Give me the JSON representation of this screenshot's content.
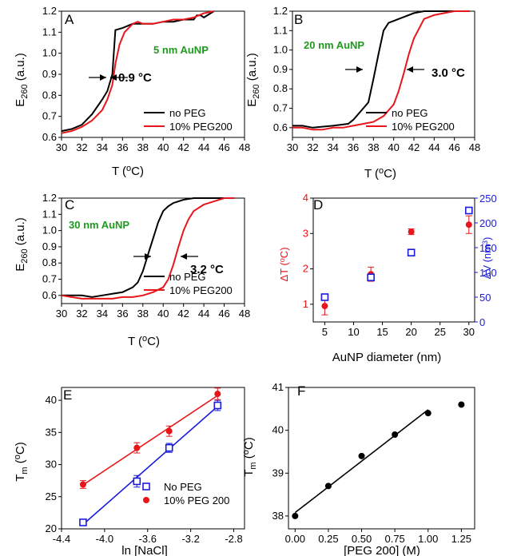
{
  "figure_colors": {
    "black": "#000000",
    "red": "#e8161b",
    "blue": "#1a1adc",
    "green": "#1e9a1e"
  },
  "chart_data": [
    {
      "panel": "A",
      "type": "line",
      "annotation": "5 nm AuNP",
      "delta_label": "0.9 °C",
      "xlabel": "T (°C)",
      "ylabel": "E260 (a.u.)",
      "xlim": [
        30,
        48
      ],
      "ylim": [
        0.6,
        1.2
      ],
      "xticks": [
        "30",
        "32",
        "34",
        "36",
        "38",
        "40",
        "42",
        "44",
        "46",
        "48"
      ],
      "yticks": [
        "0.6",
        "0.7",
        "0.8",
        "0.9",
        "1.0",
        "1.1",
        "1.2"
      ],
      "legend": "bottom-right",
      "series": [
        {
          "name": "no PEG",
          "color": "#000000",
          "x": [
            30,
            31,
            32,
            33,
            34,
            34.5,
            35,
            35.3,
            36,
            37,
            38,
            39,
            40,
            41,
            42,
            43,
            43.3,
            43.7,
            44,
            45
          ],
          "y": [
            0.63,
            0.64,
            0.66,
            0.71,
            0.78,
            0.82,
            0.9,
            1.11,
            1.12,
            1.14,
            1.14,
            1.14,
            1.15,
            1.15,
            1.16,
            1.16,
            1.18,
            1.18,
            1.17,
            1.2
          ]
        },
        {
          "name": "10% PEG200",
          "color": "#e8161b",
          "x": [
            30,
            31,
            32,
            33,
            34,
            34.5,
            35,
            35.3,
            35.7,
            36.2,
            37,
            37.5,
            38,
            39,
            40,
            41,
            42,
            43,
            44,
            45
          ],
          "y": [
            0.62,
            0.63,
            0.65,
            0.68,
            0.73,
            0.78,
            0.85,
            0.95,
            1.04,
            1.1,
            1.14,
            1.15,
            1.14,
            1.14,
            1.15,
            1.16,
            1.16,
            1.17,
            1.19,
            1.2
          ]
        }
      ]
    },
    {
      "panel": "B",
      "type": "line",
      "annotation": "20 nm AuNP",
      "delta_label": "3.0 °C",
      "xlabel": "T (°C)",
      "ylabel": "E260 (a.u.)",
      "xlim": [
        30,
        48
      ],
      "ylim": [
        0.55,
        1.2
      ],
      "xticks": [
        "30",
        "32",
        "34",
        "36",
        "38",
        "40",
        "42",
        "44",
        "46",
        "48"
      ],
      "yticks": [
        "0.6",
        "0.7",
        "0.8",
        "0.9",
        "1.0",
        "1.1",
        "1.2"
      ],
      "legend": "bottom-right",
      "series": [
        {
          "name": "no PEG",
          "color": "#000000",
          "x": [
            30,
            31,
            32,
            34,
            35.5,
            36,
            37,
            37.5,
            38,
            38.5,
            39,
            39.5,
            40,
            40.5,
            41,
            42,
            43,
            44,
            45,
            46,
            47.5
          ],
          "y": [
            0.61,
            0.61,
            0.6,
            0.61,
            0.62,
            0.64,
            0.7,
            0.73,
            0.85,
            0.98,
            1.1,
            1.14,
            1.15,
            1.16,
            1.17,
            1.19,
            1.2,
            1.2,
            1.2,
            1.2,
            1.2
          ]
        },
        {
          "name": "10% PEG200",
          "color": "#e8161b",
          "x": [
            30,
            31,
            32,
            33,
            34,
            35,
            36,
            37,
            38,
            39,
            39.5,
            40,
            40.5,
            41,
            41.5,
            42,
            43,
            44,
            45,
            46,
            47.5
          ],
          "y": [
            0.6,
            0.6,
            0.59,
            0.59,
            0.6,
            0.6,
            0.61,
            0.62,
            0.63,
            0.66,
            0.69,
            0.72,
            0.79,
            0.88,
            0.98,
            1.06,
            1.16,
            1.18,
            1.19,
            1.2,
            1.2
          ]
        }
      ]
    },
    {
      "panel": "C",
      "type": "line",
      "annotation": "30 nm AuNP",
      "delta_label": "3.2 °C",
      "xlabel": "T (°C)",
      "ylabel": "E260 (a.u.)",
      "xlim": [
        30,
        48
      ],
      "ylim": [
        0.55,
        1.2
      ],
      "xticks": [
        "30",
        "32",
        "34",
        "36",
        "38",
        "40",
        "42",
        "44",
        "46",
        "48"
      ],
      "yticks": [
        "0.6",
        "0.7",
        "0.8",
        "0.9",
        "1.0",
        "1.1",
        "1.2"
      ],
      "legend": "bottom-right",
      "series": [
        {
          "name": "no PEG",
          "color": "#000000",
          "x": [
            30,
            31,
            32,
            33,
            34,
            35,
            36,
            37,
            37.5,
            38,
            38.5,
            39,
            39.5,
            40,
            40.5,
            41,
            42,
            43,
            44,
            45,
            47
          ],
          "y": [
            0.6,
            0.6,
            0.6,
            0.59,
            0.6,
            0.61,
            0.62,
            0.65,
            0.68,
            0.75,
            0.85,
            0.95,
            1.05,
            1.12,
            1.15,
            1.17,
            1.19,
            1.2,
            1.2,
            1.2,
            1.2
          ]
        },
        {
          "name": "10% PEG200",
          "color": "#e8161b",
          "x": [
            30,
            31,
            32,
            33,
            34,
            35,
            36,
            37,
            38,
            39,
            40,
            40.5,
            41,
            41.5,
            42,
            42.5,
            43,
            44,
            45,
            46,
            47
          ],
          "y": [
            0.6,
            0.59,
            0.58,
            0.58,
            0.58,
            0.58,
            0.59,
            0.59,
            0.6,
            0.62,
            0.65,
            0.7,
            0.79,
            0.9,
            1.0,
            1.07,
            1.12,
            1.16,
            1.18,
            1.2,
            1.2
          ]
        }
      ]
    },
    {
      "panel": "D",
      "type": "scatter",
      "xlabel": "AuNP diameter (nm)",
      "ylabel": "ΔT (°C)",
      "y2label": "ΔV (nm³)",
      "xlim": [
        3,
        31
      ],
      "ylim": [
        0.5,
        4
      ],
      "y2lim": [
        0,
        250
      ],
      "xticks": [
        "5",
        "10",
        "15",
        "20",
        "25",
        "30"
      ],
      "yticks": [
        "1",
        "2",
        "3",
        "4"
      ],
      "y2ticks": [
        "0",
        "50",
        "100",
        "150",
        "200",
        "250"
      ],
      "series": [
        {
          "name": "ΔT",
          "color": "#e8161b",
          "marker": "filled-circle",
          "axis": "left",
          "x": [
            5,
            13,
            20,
            30
          ],
          "y": [
            0.95,
            1.85,
            3.05,
            3.25
          ],
          "err": [
            0.25,
            0.2,
            0.08,
            0.25
          ]
        },
        {
          "name": "ΔV",
          "color": "#1a1adc",
          "marker": "open-square",
          "axis": "right",
          "x": [
            5,
            13,
            20,
            30
          ],
          "y": [
            50,
            90,
            140,
            225
          ]
        }
      ]
    },
    {
      "panel": "E",
      "type": "scatter",
      "xlabel": "ln [NaCl]",
      "ylabel": "Tm (°C)",
      "xlim": [
        -4.4,
        -2.7
      ],
      "ylim": [
        20,
        42
      ],
      "xticks": [
        "-4.4",
        "-4.0",
        "-3.6",
        "-3.2",
        "-2.8"
      ],
      "yticks": [
        "20",
        "25",
        "30",
        "35",
        "40"
      ],
      "legend": "bottom-right",
      "series": [
        {
          "name": "No PEG",
          "color": "#1a1adc",
          "marker": "open-square",
          "fit": "linear",
          "x": [
            -4.2,
            -3.7,
            -3.4,
            -2.95
          ],
          "y": [
            21.0,
            27.4,
            32.6,
            39.2
          ],
          "err": [
            0.4,
            0.9,
            0.7,
            0.8
          ]
        },
        {
          "name": "10% PEG 200",
          "color": "#e8161b",
          "marker": "filled-circle",
          "fit": "linear",
          "x": [
            -4.2,
            -3.7,
            -3.4,
            -2.95
          ],
          "y": [
            26.9,
            32.6,
            35.2,
            41.0
          ],
          "err": [
            0.6,
            0.8,
            0.8,
            0.9
          ]
        }
      ]
    },
    {
      "panel": "F",
      "type": "scatter",
      "xlabel": "[PEG 200] (M)",
      "ylabel": "Tm (°C)",
      "xlim": [
        -0.05,
        1.35
      ],
      "ylim": [
        37.7,
        41
      ],
      "xticks": [
        "0.00",
        "0.25",
        "0.50",
        "0.75",
        "1.00",
        "1.25"
      ],
      "yticks": [
        "38",
        "39",
        "40",
        "41"
      ],
      "series": [
        {
          "name": "",
          "color": "#000000",
          "marker": "filled-circle",
          "fit_range": [
            0,
            1
          ],
          "x": [
            0,
            0.25,
            0.5,
            0.75,
            1.0,
            1.25
          ],
          "y": [
            38.0,
            38.7,
            39.4,
            39.9,
            40.4,
            40.6
          ]
        }
      ]
    }
  ]
}
